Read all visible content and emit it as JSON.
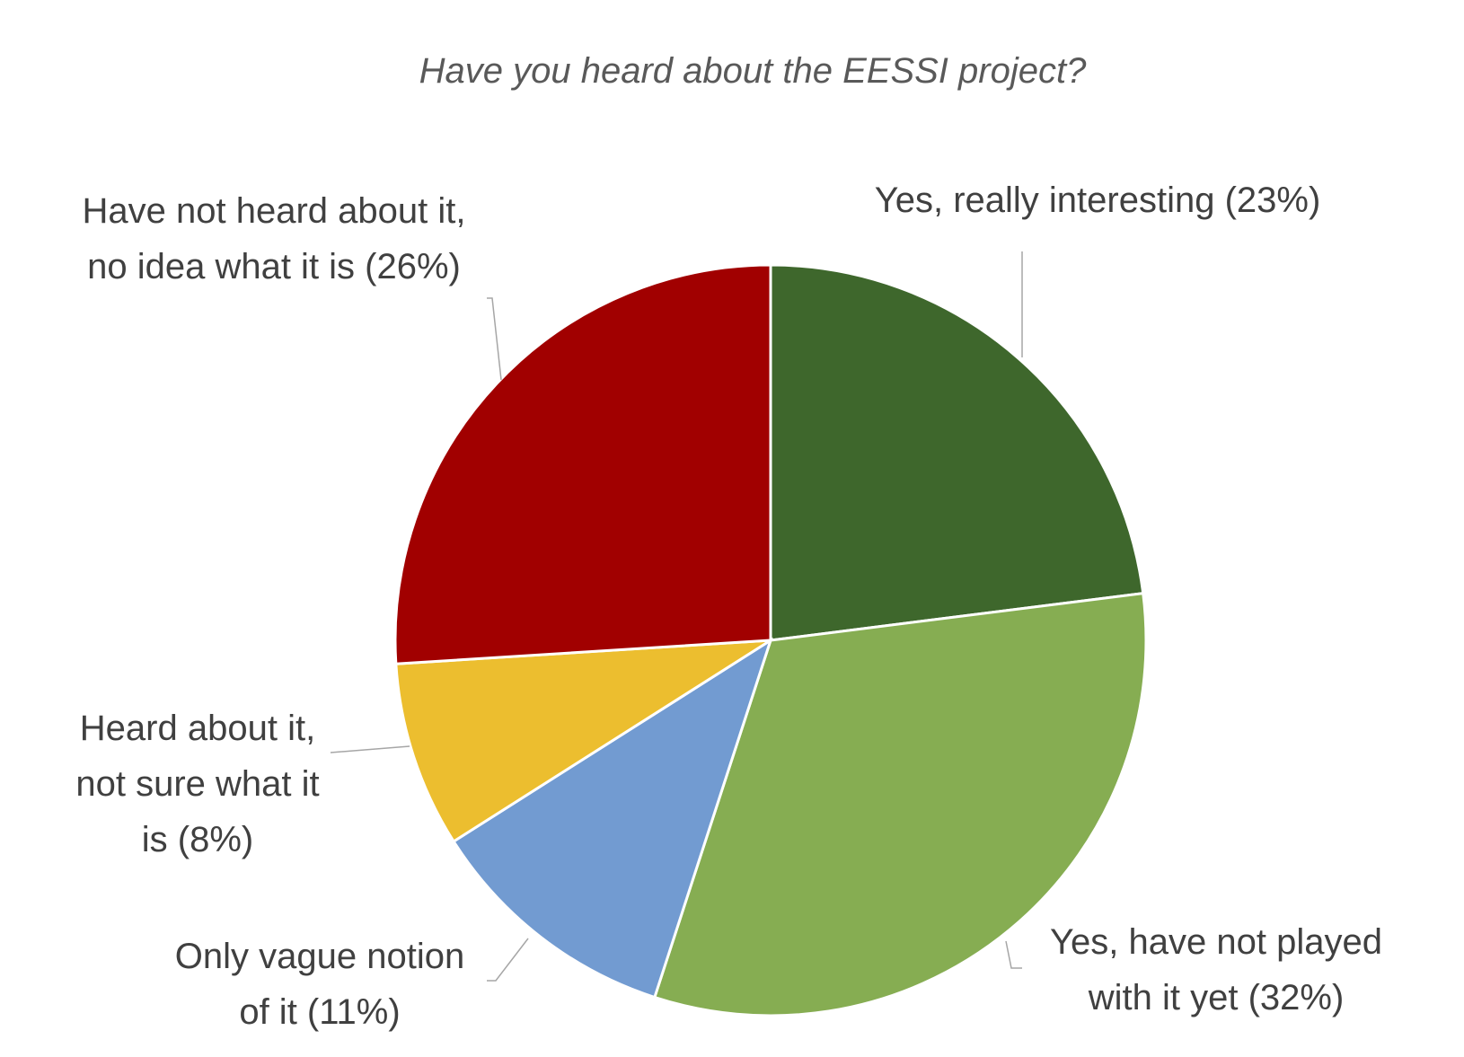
{
  "chart_data": {
    "type": "pie",
    "title": "Have you heard about the EESSI project?",
    "start_angle_deg": 0,
    "direction": "clockwise",
    "slices": [
      {
        "label": "Yes, really interesting (23%)",
        "value": 23,
        "color": "#3e672c"
      },
      {
        "label": "Yes, have not played with it yet (32%)",
        "value": 32,
        "color": "#86ad52"
      },
      {
        "label": "Only vague notion of it (11%)",
        "value": 11,
        "color": "#729bd1"
      },
      {
        "label": "Heard about it, not sure what it is (8%)",
        "value": 8,
        "color": "#ecbe2f"
      },
      {
        "label": "Have not heard about it, no idea what it is (26%)",
        "value": 26,
        "color": "#a10000"
      }
    ]
  }
}
